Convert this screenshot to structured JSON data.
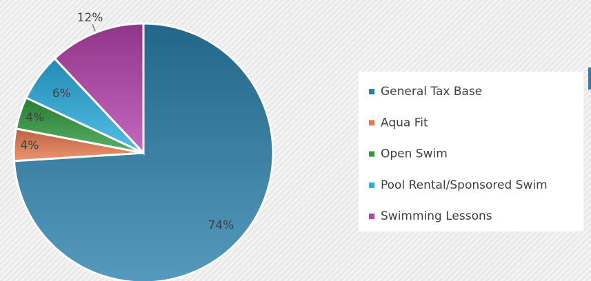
{
  "chart_data": {
    "type": "pie",
    "categories": [
      "General Tax Base",
      "Aqua Fit",
      "Open Swim",
      "Pool Rental/Sponsored Swim",
      "Swimming Lessons"
    ],
    "values": [
      74,
      4,
      4,
      6,
      12
    ],
    "value_labels": [
      "74%",
      "4%",
      "4%",
      "6%",
      "12%"
    ],
    "colors": [
      "#2a7fab",
      "#e8794c",
      "#2f9b3c",
      "#2aaee0",
      "#b542ac"
    ],
    "legend": "right"
  }
}
